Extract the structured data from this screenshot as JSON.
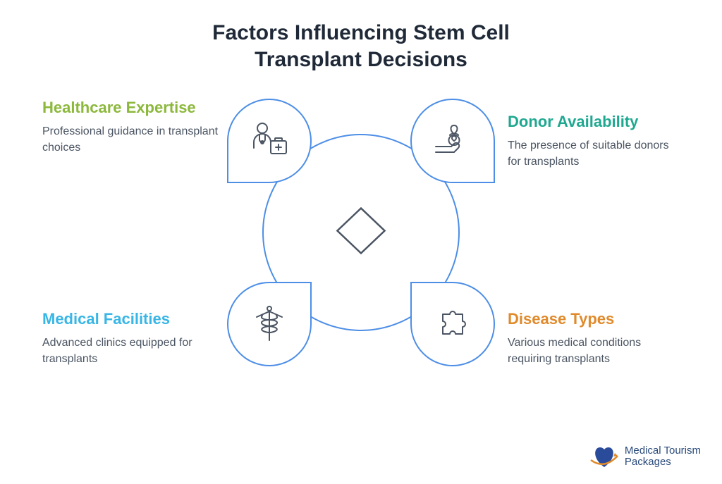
{
  "title": {
    "line1": "Factors Influencing Stem Cell",
    "line2": "Transplant Decisions",
    "fontsize": 30,
    "color": "#1f2937"
  },
  "layout": {
    "diagram_width": 380,
    "diagram_height": 380,
    "circle_diameter": 280,
    "circle_border_width": 2,
    "circle_border_color": "#4d8ee6",
    "petal_size": 120,
    "petal_border_width": 2,
    "petal_border_color": "#4d8ee6",
    "petal_bg": "#ffffff",
    "diamond_size": 84,
    "diamond_stroke": "#4b5563",
    "diamond_stroke_width": 3,
    "icon_stroke": "#4b5563",
    "icon_stroke_width": 2
  },
  "factors": {
    "top_left": {
      "title": "Healthcare Expertise",
      "desc": "Professional guidance in transplant choices",
      "title_color": "#8cb83c",
      "align": "left",
      "icon": "doctor"
    },
    "top_right": {
      "title": "Donor Availability",
      "desc": "The presence of suitable donors for transplants",
      "title_color": "#1fa890",
      "align": "left",
      "icon": "donor"
    },
    "bottom_left": {
      "title": "Medical Facilities",
      "desc": "Advanced clinics equipped for transplants",
      "title_color": "#38b6e6",
      "align": "left",
      "icon": "caduceus"
    },
    "bottom_right": {
      "title": "Disease Types",
      "desc": "Various medical conditions requiring transplants",
      "title_color": "#e08a2b",
      "align": "left",
      "icon": "puzzle"
    }
  },
  "typography": {
    "label_title_fontsize": 22,
    "label_desc_fontsize": 16
  },
  "logo": {
    "line1": "Medical Tourism",
    "line2": "Packages",
    "heart_color": "#2a4a9a",
    "swoosh_color": "#e08a2b"
  }
}
